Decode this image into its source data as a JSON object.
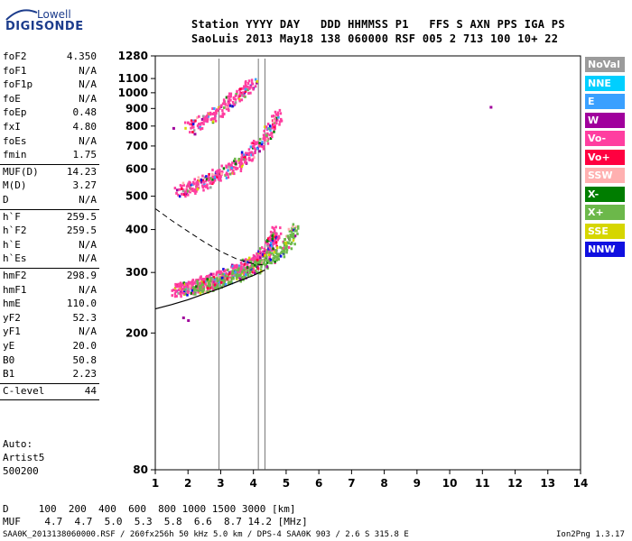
{
  "logo": {
    "top": "Lowell",
    "bottom": "DIGISONDE"
  },
  "header": {
    "line1": "Station YYYY DAY   DDD HHMMSS P1   FFS S AXN PPS IGA PS",
    "line2": "SaoLuis 2013 May18 138 060000 RSF 005 2 713 100 10+ 22"
  },
  "params": [
    {
      "name": "foF2",
      "value": "4.350"
    },
    {
      "name": "foF1",
      "value": "N/A"
    },
    {
      "name": "foF1p",
      "value": "N/A"
    },
    {
      "name": "foE",
      "value": "N/A"
    },
    {
      "name": "foEp",
      "value": "0.48"
    },
    {
      "name": "fxI",
      "value": "4.80"
    },
    {
      "name": "foEs",
      "value": "N/A"
    },
    {
      "name": "fmin",
      "value": "1.75"
    },
    {
      "name": "MUF(D)",
      "value": "14.23"
    },
    {
      "name": "M(D)",
      "value": "3.27"
    },
    {
      "name": "D",
      "value": "N/A"
    },
    {
      "name": "h`F",
      "value": "259.5"
    },
    {
      "name": "h`F2",
      "value": "259.5"
    },
    {
      "name": "h`E",
      "value": "N/A"
    },
    {
      "name": "h`Es",
      "value": "N/A"
    },
    {
      "name": "hmF2",
      "value": "298.9"
    },
    {
      "name": "hmF1",
      "value": "N/A"
    },
    {
      "name": "hmE",
      "value": "110.0"
    },
    {
      "name": "yF2",
      "value": "52.3"
    },
    {
      "name": "yF1",
      "value": "N/A"
    },
    {
      "name": "yE",
      "value": "20.0"
    },
    {
      "name": "B0",
      "value": "50.8"
    },
    {
      "name": "B1",
      "value": "2.23"
    },
    {
      "name": "C-level",
      "value": "44"
    }
  ],
  "autoscale": {
    "line1": "Auto:",
    "line2": "Artist5",
    "line3": "500200"
  },
  "muf_table": {
    "d_line": "D     100  200  400  600  800 1000 1500 3000 [km]",
    "muf_line": "MUF    4.7  4.7  5.0  5.3  5.8  6.6  8.7 14.2 [MHz]"
  },
  "footer": {
    "left": "SAA0K_2013138060000.RSF / 260fx256h 50 kHz 5.0 km / DPS-4 SAA0K 903 / 2.6 S 315.8 E",
    "right": "Ion2Png 1.3.17"
  },
  "legend": [
    {
      "label": "NoVal",
      "color": "#9b9b9b"
    },
    {
      "label": "NNE",
      "color": "#00cfff"
    },
    {
      "label": "E",
      "color": "#3aa0ff"
    },
    {
      "label": "W",
      "color": "#a0009c"
    },
    {
      "label": "Vo-",
      "color": "#ff3ea0"
    },
    {
      "label": "Vo+",
      "color": "#ff0040"
    },
    {
      "label": "SSW",
      "color": "#ffb0b0"
    },
    {
      "label": "X-",
      "color": "#007d00"
    },
    {
      "label": "X+",
      "color": "#6cb84a"
    },
    {
      "label": "SSE",
      "color": "#d6d600"
    },
    {
      "label": "NNW",
      "color": "#1010e0"
    }
  ],
  "chart_data": {
    "type": "scatter",
    "xlabel": "",
    "ylabel": "",
    "xlim": [
      1,
      14
    ],
    "ylim": [
      80,
      1280
    ],
    "y_scale": "log",
    "x_ticks": [
      1,
      2,
      3,
      4,
      5,
      6,
      7,
      8,
      9,
      10,
      11,
      12,
      13,
      14
    ],
    "y_ticks": [
      80,
      200,
      300,
      400,
      500,
      600,
      700,
      800,
      900,
      1000,
      1100,
      1280
    ],
    "vertical_markers": [
      2.95,
      4.15,
      4.35
    ],
    "traces": [
      {
        "name": "o-trace first hop",
        "color": "#ff3ea0",
        "points": [
          [
            1.6,
            268
          ],
          [
            1.8,
            270
          ],
          [
            2.0,
            272
          ],
          [
            2.2,
            275
          ],
          [
            2.4,
            280
          ],
          [
            2.6,
            285
          ],
          [
            2.8,
            290
          ],
          [
            3.0,
            295
          ],
          [
            3.2,
            300
          ],
          [
            3.4,
            305
          ],
          [
            3.6,
            310
          ],
          [
            3.8,
            318
          ],
          [
            4.0,
            325
          ],
          [
            4.2,
            335
          ],
          [
            4.4,
            350
          ],
          [
            4.5,
            365
          ],
          [
            4.6,
            380
          ],
          [
            4.7,
            400
          ]
        ]
      },
      {
        "name": "x-trace first hop",
        "color": "#6cb84a",
        "points": [
          [
            2.2,
            272
          ],
          [
            2.5,
            276
          ],
          [
            2.8,
            282
          ],
          [
            3.1,
            288
          ],
          [
            3.4,
            295
          ],
          [
            3.7,
            303
          ],
          [
            4.0,
            312
          ],
          [
            4.3,
            322
          ],
          [
            4.6,
            335
          ],
          [
            4.9,
            355
          ],
          [
            5.1,
            380
          ],
          [
            5.3,
            410
          ]
        ]
      },
      {
        "name": "o-trace second hop",
        "color": "#ff3ea0",
        "points": [
          [
            1.7,
            520
          ],
          [
            2.0,
            530
          ],
          [
            2.3,
            545
          ],
          [
            2.6,
            560
          ],
          [
            2.9,
            580
          ],
          [
            3.2,
            600
          ],
          [
            3.5,
            625
          ],
          [
            3.8,
            660
          ],
          [
            4.1,
            700
          ],
          [
            4.4,
            760
          ],
          [
            4.6,
            820
          ],
          [
            4.75,
            880
          ]
        ]
      },
      {
        "name": "third hop",
        "color": "#ff3ea0",
        "points": [
          [
            2.0,
            800
          ],
          [
            2.4,
            830
          ],
          [
            2.8,
            870
          ],
          [
            3.1,
            920
          ],
          [
            3.4,
            970
          ],
          [
            3.7,
            1030
          ],
          [
            4.0,
            1090
          ]
        ]
      }
    ],
    "isolated_points": [
      [
        11.25,
        910
      ],
      [
        1.55,
        790
      ],
      [
        2.2,
        760
      ],
      [
        1.85,
        222
      ],
      [
        2.0,
        218
      ]
    ],
    "profile_curve": [
      [
        1.0,
        235
      ],
      [
        1.5,
        242
      ],
      [
        2.0,
        250
      ],
      [
        2.5,
        260
      ],
      [
        3.0,
        270
      ],
      [
        3.5,
        282
      ],
      [
        4.0,
        294
      ],
      [
        4.35,
        305
      ]
    ],
    "dashed_curve": [
      [
        1.0,
        460
      ],
      [
        1.5,
        425
      ],
      [
        2.0,
        395
      ],
      [
        2.5,
        368
      ],
      [
        3.0,
        345
      ],
      [
        3.5,
        328
      ],
      [
        4.0,
        318
      ],
      [
        4.35,
        315
      ]
    ]
  }
}
